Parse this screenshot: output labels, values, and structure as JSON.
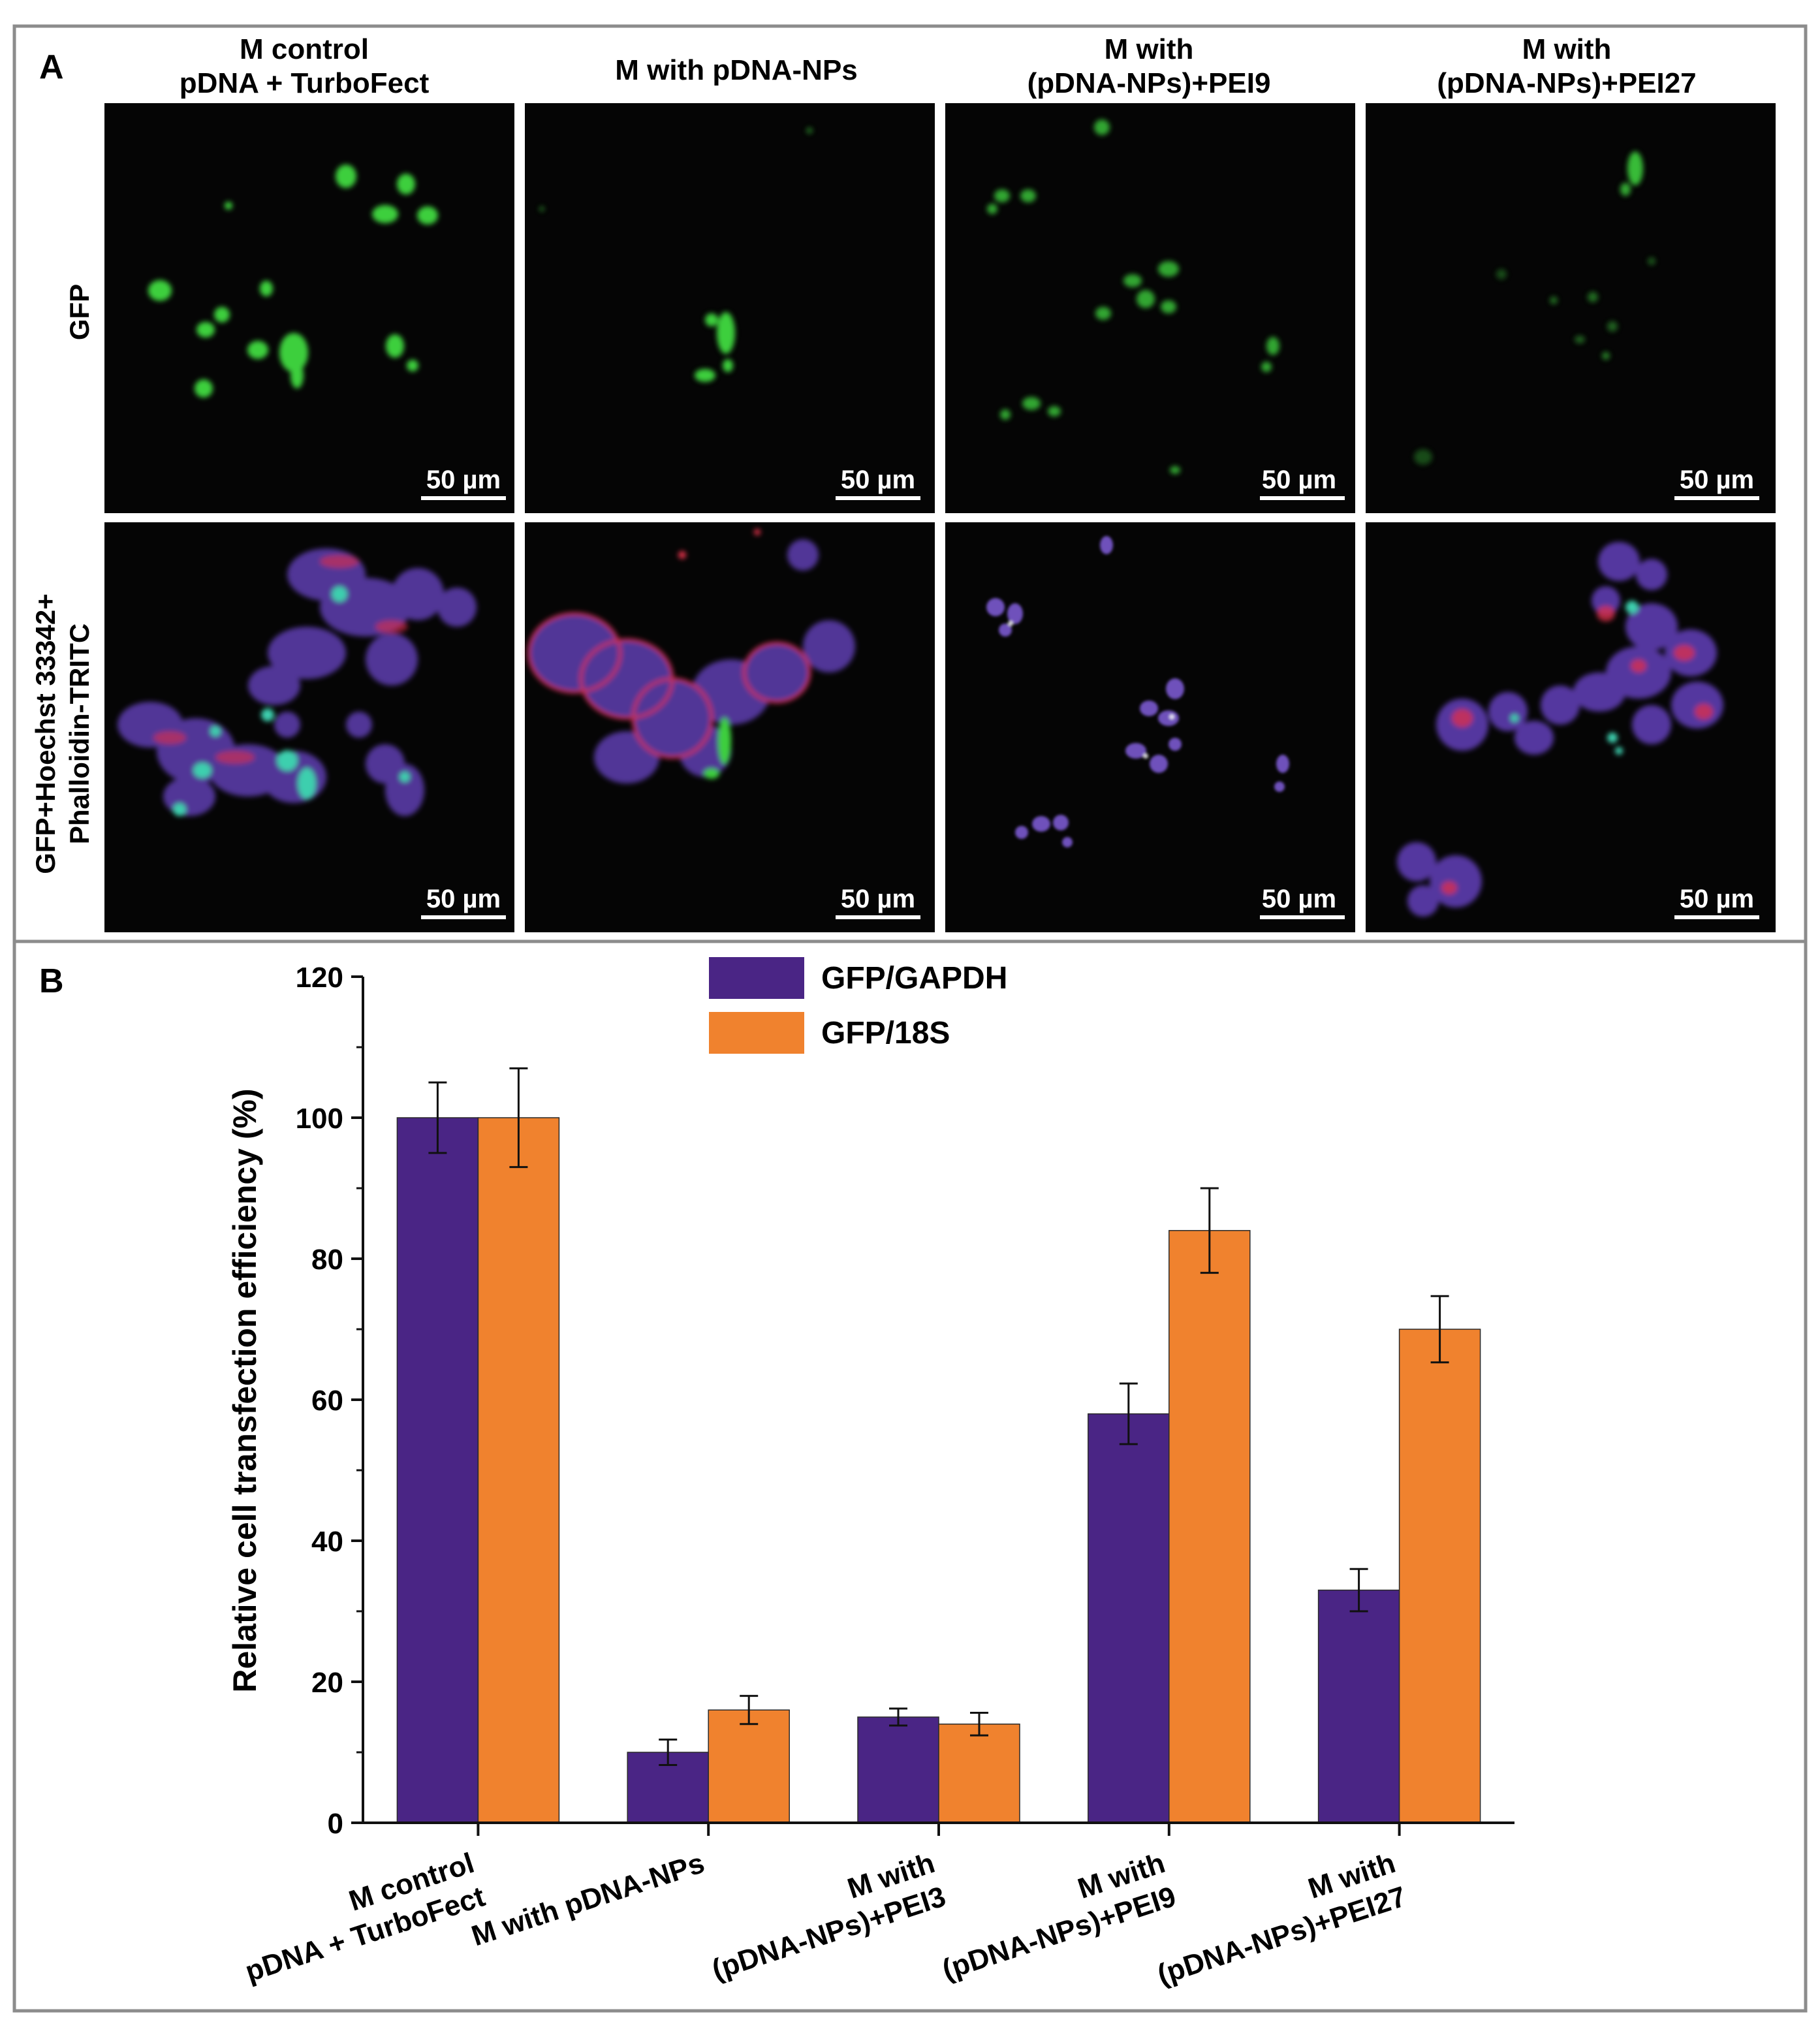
{
  "panel_a": {
    "label": "A",
    "columns": [
      {
        "line1": "M control",
        "line2": "pDNA + TurboFect"
      },
      {
        "line1": "M with pDNA-NPs",
        "line2": ""
      },
      {
        "line1": "M with",
        "line2": "(pDNA-NPs)+PEI9"
      },
      {
        "line1": "M with",
        "line2": "(pDNA-NPs)+PEI27"
      }
    ],
    "rows": [
      {
        "line1": "GFP",
        "line2": ""
      },
      {
        "line1": "GFP+Hoechst 33342+",
        "line2": "Phalloidin-TRITC"
      }
    ],
    "scale_bar_label": "50 µm",
    "colors": {
      "gfp": "#3ecf3e",
      "actin": "#e0304a",
      "nucleus": "#6a4ad8",
      "background": "#000000"
    }
  },
  "panel_b": {
    "label": "B"
  },
  "chart_data": {
    "type": "bar",
    "title": "",
    "xlabel": "",
    "ylabel": "Relative cell transfection efficiency (%)",
    "ylim": [
      0,
      120
    ],
    "yticks": [
      0,
      20,
      40,
      60,
      80,
      100,
      120
    ],
    "categories": [
      [
        "M control",
        "pDNA + TurboFect"
      ],
      [
        "M with pDNA-NPs"
      ],
      [
        "M with",
        "(pDNA-NPs)+PEI3"
      ],
      [
        "M with",
        "(pDNA-NPs)+PEI9"
      ],
      [
        "M with",
        "(pDNA-NPs)+PEI27"
      ]
    ],
    "series": [
      {
        "name": "GFP/GAPDH",
        "color": "#4a2585",
        "values": [
          100,
          10,
          15,
          58,
          33
        ],
        "errors": [
          5,
          1.8,
          1.2,
          4.3,
          3
        ]
      },
      {
        "name": "GFP/18S",
        "color": "#f0822e",
        "values": [
          100,
          16,
          14,
          84,
          70
        ],
        "errors": [
          7,
          2,
          1.6,
          6,
          4.7
        ]
      }
    ],
    "legend_position": "top-center",
    "grid": false
  }
}
